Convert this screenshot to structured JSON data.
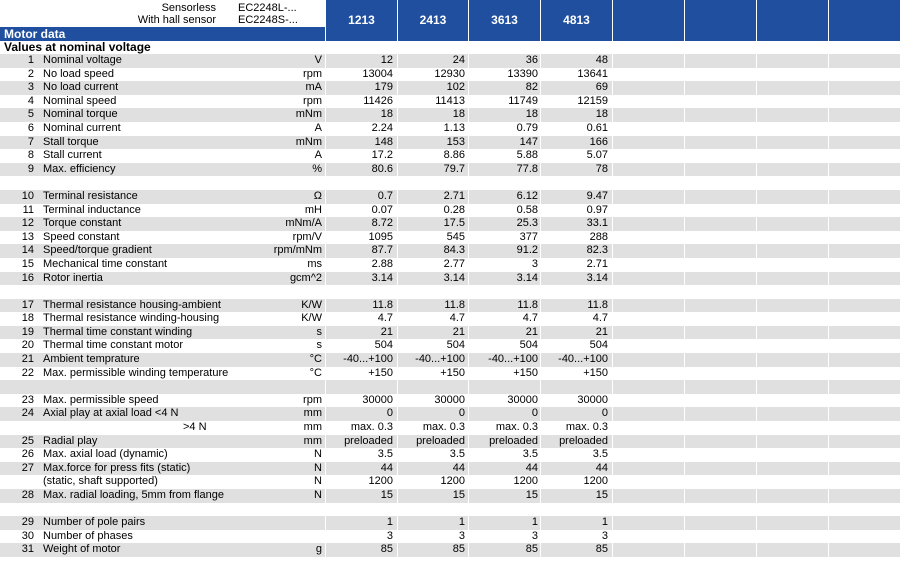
{
  "header": {
    "sensorless_label": "Sensorless",
    "sensorless_model": "EC2248L-...",
    "hall_label": "With hall sensor",
    "hall_model": "EC2248S-...",
    "columns": [
      "1213",
      "2413",
      "3613",
      "4813",
      "",
      "",
      "",
      ""
    ]
  },
  "motor_data_title": "Motor data",
  "section_title": "Values at nominal voltage",
  "rows": [
    {
      "n": "1",
      "name": "Nominal voltage",
      "unit": "V",
      "v": [
        "12",
        "24",
        "36",
        "48"
      ]
    },
    {
      "n": "2",
      "name": "No load speed",
      "unit": "rpm",
      "v": [
        "13004",
        "12930",
        "13390",
        "13641"
      ]
    },
    {
      "n": "3",
      "name": "No load current",
      "unit": "mA",
      "v": [
        "179",
        "102",
        "82",
        "69"
      ]
    },
    {
      "n": "4",
      "name": "Nominal speed",
      "unit": "rpm",
      "v": [
        "11426",
        "11413",
        "11749",
        "12159"
      ]
    },
    {
      "n": "5",
      "name": "Nominal torque",
      "unit": "mNm",
      "v": [
        "18",
        "18",
        "18",
        "18"
      ]
    },
    {
      "n": "6",
      "name": "Nominal current",
      "unit": "A",
      "v": [
        "2.24",
        "1.13",
        "0.79",
        "0.61"
      ]
    },
    {
      "n": "7",
      "name": "Stall torque",
      "unit": "mNm",
      "v": [
        "148",
        "153",
        "147",
        "166"
      ]
    },
    {
      "n": "8",
      "name": "Stall current",
      "unit": "A",
      "v": [
        "17.2",
        "8.86",
        "5.88",
        "5.07"
      ]
    },
    {
      "n": "9",
      "name": "Max. efficiency",
      "unit": "%",
      "v": [
        "80.6",
        "79.7",
        "77.8",
        "78"
      ]
    },
    {
      "n": "",
      "name": "",
      "unit": "",
      "v": [
        "",
        "",
        "",
        ""
      ]
    },
    {
      "n": "10",
      "name": "Terminal resistance",
      "unit": "Ω",
      "v": [
        "0.7",
        "2.71",
        "6.12",
        "9.47"
      ]
    },
    {
      "n": "11",
      "name": "Terminal inductance",
      "unit": "mH",
      "v": [
        "0.07",
        "0.28",
        "0.58",
        "0.97"
      ]
    },
    {
      "n": "12",
      "name": "Torque constant",
      "unit": "mNm/A",
      "v": [
        "8.72",
        "17.5",
        "25.3",
        "33.1"
      ]
    },
    {
      "n": "13",
      "name": "Speed constant",
      "unit": "rpm/V",
      "v": [
        "1095",
        "545",
        "377",
        "288"
      ]
    },
    {
      "n": "14",
      "name": "Speed/torque gradient",
      "unit": "rpm/mNm",
      "v": [
        "87.7",
        "84.3",
        "91.2",
        "82.3"
      ]
    },
    {
      "n": "15",
      "name": "Mechanical time constant",
      "unit": "ms",
      "v": [
        "2.88",
        "2.77",
        "3",
        "2.71"
      ]
    },
    {
      "n": "16",
      "name": "Rotor inertia",
      "unit": "gcm^2",
      "v": [
        "3.14",
        "3.14",
        "3.14",
        "3.14"
      ]
    },
    {
      "n": "",
      "name": "",
      "unit": "",
      "v": [
        "",
        "",
        "",
        ""
      ]
    },
    {
      "n": "17",
      "name": "Thermal resistance housing-ambient",
      "unit": "K/W",
      "v": [
        "11.8",
        "11.8",
        "11.8",
        "11.8"
      ]
    },
    {
      "n": "18",
      "name": "Thermal resistance winding-housing",
      "unit": "K/W",
      "v": [
        "4.7",
        "4.7",
        "4.7",
        "4.7"
      ]
    },
    {
      "n": "19",
      "name": "Thermal time constant winding",
      "unit": "s",
      "v": [
        "21",
        "21",
        "21",
        "21"
      ]
    },
    {
      "n": "20",
      "name": "Thermal time constant motor",
      "unit": "s",
      "v": [
        "504",
        "504",
        "504",
        "504"
      ]
    },
    {
      "n": "21",
      "name": "Ambient temprature",
      "unit": "°C",
      "v": [
        "-40...+100",
        "-40...+100",
        "-40...+100",
        "-40...+100"
      ]
    },
    {
      "n": "22",
      "name": "Max. permissible winding temperature",
      "unit": "°C",
      "v": [
        "+150",
        "+150",
        "+150",
        "+150"
      ]
    },
    {
      "n": "",
      "name": "",
      "unit": "",
      "v": [
        "",
        "",
        "",
        ""
      ]
    },
    {
      "n": "23",
      "name": "Max. permissible speed",
      "unit": "rpm",
      "v": [
        "30000",
        "30000",
        "30000",
        "30000"
      ]
    },
    {
      "n": "24",
      "name": "Axial play at axial load  <4 N",
      "unit": "mm",
      "v": [
        "0",
        "0",
        "0",
        "0"
      ]
    },
    {
      "n": "",
      "name": ">4 N",
      "unit": "mm",
      "v": [
        "max. 0.3",
        "max. 0.3",
        "max. 0.3",
        "max. 0.3"
      ],
      "indent": true
    },
    {
      "n": "25",
      "name": "Radial play",
      "unit": "mm",
      "v": [
        "preloaded",
        "preloaded",
        "preloaded",
        "preloaded"
      ]
    },
    {
      "n": "26",
      "name": "Max. axial load (dynamic)",
      "unit": "N",
      "v": [
        "3.5",
        "3.5",
        "3.5",
        "3.5"
      ]
    },
    {
      "n": "27",
      "name": "Max.force for press fits (static)",
      "unit": "N",
      "v": [
        "44",
        "44",
        "44",
        "44"
      ]
    },
    {
      "n": "",
      "name": "(static, shaft supported)",
      "unit": "N",
      "v": [
        "1200",
        "1200",
        "1200",
        "1200"
      ]
    },
    {
      "n": "28",
      "name": "Max. radial loading, 5mm from flange",
      "unit": "N",
      "v": [
        "15",
        "15",
        "15",
        "15"
      ]
    },
    {
      "n": "",
      "name": "",
      "unit": "",
      "v": [
        "",
        "",
        "",
        ""
      ]
    },
    {
      "n": "29",
      "name": "Number of pole pairs",
      "unit": "",
      "v": [
        "1",
        "1",
        "1",
        "1"
      ]
    },
    {
      "n": "30",
      "name": "Number of phases",
      "unit": "",
      "v": [
        "3",
        "3",
        "3",
        "3"
      ]
    },
    {
      "n": "31",
      "name": "Weight of motor",
      "unit": "g",
      "v": [
        "85",
        "85",
        "85",
        "85"
      ]
    }
  ]
}
